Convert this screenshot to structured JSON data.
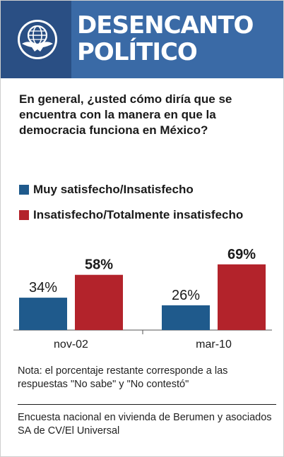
{
  "header": {
    "title_line1": "DESENCANTO",
    "title_line2": "POLÍTICO",
    "logo_icon": "eagle-globe-icon"
  },
  "question": "En general, ¿usted cómo diría que se encuentra con la manera en que la democracia funciona en México?",
  "legend": [
    {
      "label": "Muy satisfecho/Insatisfecho",
      "color": "#1f5a8c"
    },
    {
      "label": "Insatisfecho/Totalmente insatisfecho",
      "color": "#b3232b"
    }
  ],
  "chart_data": {
    "type": "bar",
    "categories": [
      "nov-02",
      "mar-10"
    ],
    "series": [
      {
        "name": "Muy satisfecho/Insatisfecho",
        "values": [
          34,
          26
        ],
        "labels": [
          "34%",
          "26%"
        ],
        "color": "#1f5a8c"
      },
      {
        "name": "Insatisfecho/Totalmente insatisfecho",
        "values": [
          58,
          69
        ],
        "labels": [
          "58%",
          "69%"
        ],
        "color": "#b3232b"
      }
    ],
    "ylim": [
      0,
      100
    ],
    "grid": false
  },
  "note": "Nota: el porcentaje restante corresponde a las respuestas \"No sabe\" y \"No contestó\"",
  "source": "Encuesta nacional en vivienda de Berumen y asociados SA de CV/El Universal"
}
